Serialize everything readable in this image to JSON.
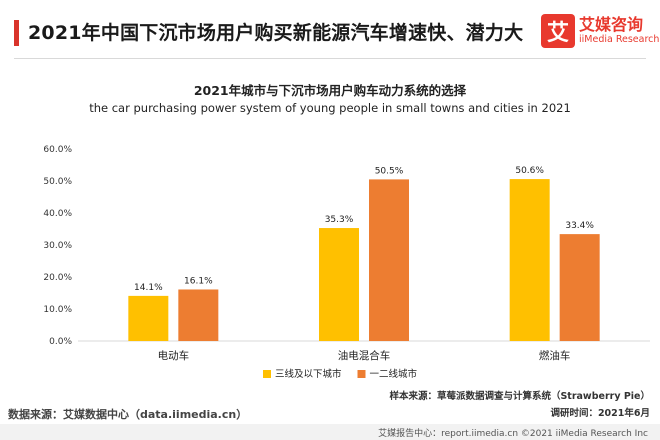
{
  "header": {
    "title": "2021年中国下沉市场用户购买新能源汽车增速快、潜力大",
    "logo_mark": "艾",
    "logo_cn": "艾媒咨询",
    "logo_en": "iiMedia Research"
  },
  "chart_data": {
    "type": "bar",
    "title": "2021年城市与下沉市场用户购车动力系统的选择",
    "subtitle": "the car purchasing power system of young people in small towns and cities in 2021",
    "categories": [
      "电动车",
      "油电混合车",
      "燃油车"
    ],
    "series": [
      {
        "name": "三线及以下城市",
        "values": [
          14.1,
          35.3,
          50.6
        ],
        "color": "#ffc000"
      },
      {
        "name": "一二线城市",
        "values": [
          16.1,
          50.5,
          33.4
        ],
        "color": "#ed7d31"
      }
    ],
    "ylim": [
      0,
      60
    ],
    "yticks": [
      "0.0%",
      "10.0%",
      "20.0%",
      "30.0%",
      "40.0%",
      "50.0%",
      "60.0%"
    ],
    "value_suffix": "%",
    "grid": false,
    "legend_position": "bottom"
  },
  "footer": {
    "data_source": "数据来源：艾媒数据中心（data.iimedia.cn）",
    "sample_source": "样本来源：草莓派数据调查与计算系统（Strawberry Pie）",
    "survey_time": "调研时间：2021年6月",
    "bottom_text": "艾媒报告中心：report.iimedia.cn ©2021 iiMedia Research Inc"
  }
}
